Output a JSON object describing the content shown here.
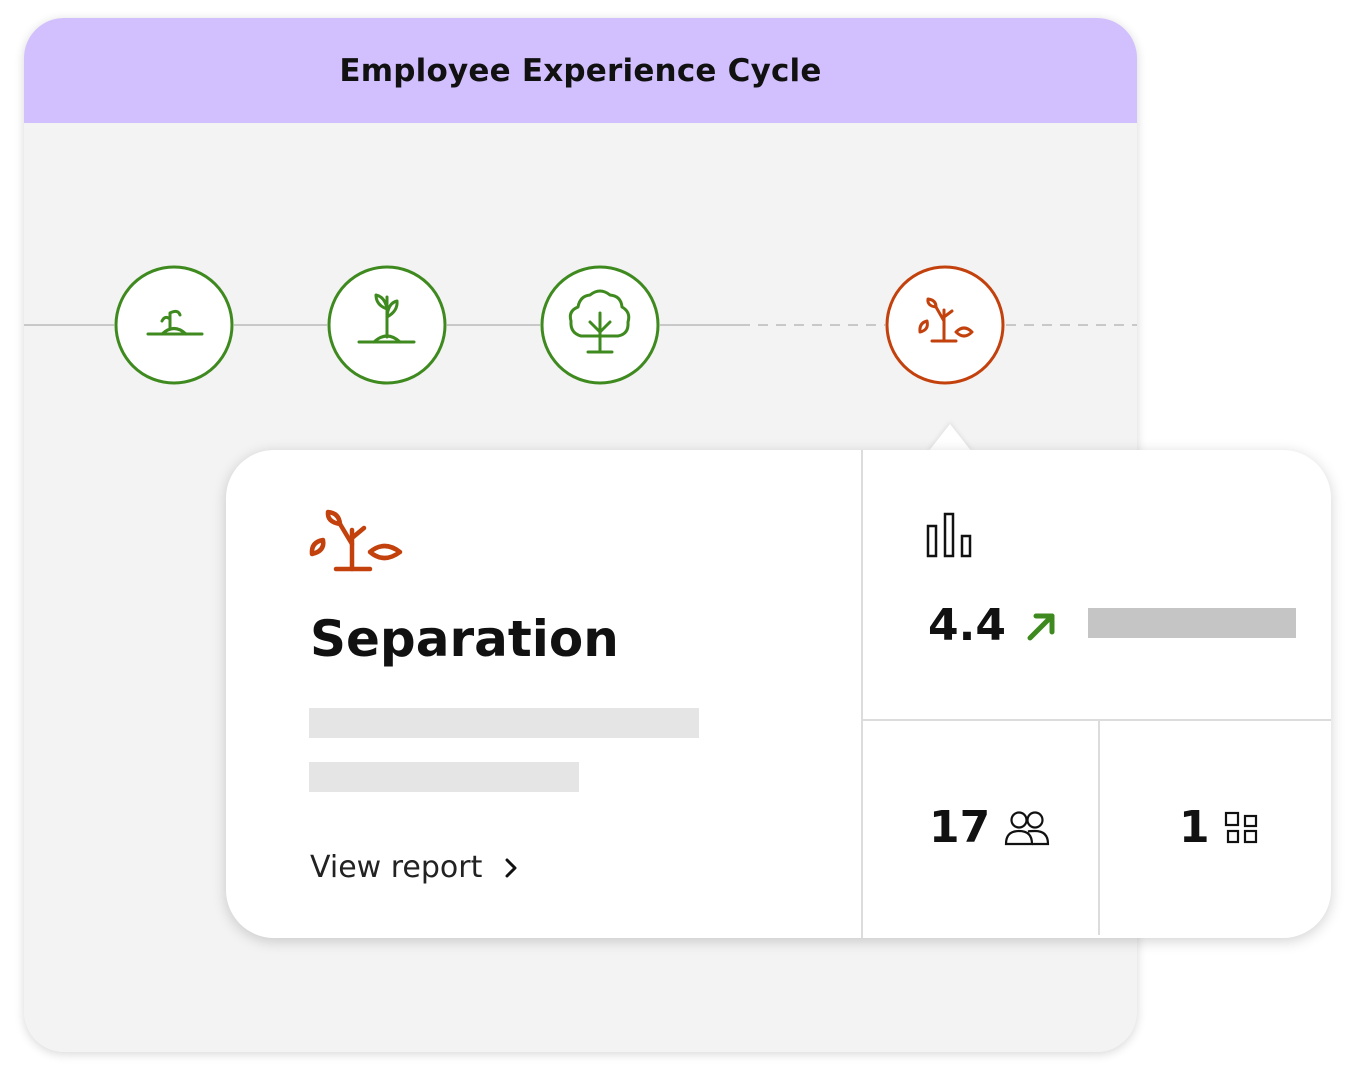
{
  "header": {
    "title": "Employee Experience Cycle"
  },
  "timeline": {
    "stages": [
      {
        "icon": "seedling-icon",
        "state": "complete"
      },
      {
        "icon": "sprout-icon",
        "state": "complete"
      },
      {
        "icon": "tree-icon",
        "state": "complete"
      },
      {
        "icon": "falling-leaves-icon",
        "state": "selected"
      }
    ]
  },
  "popup": {
    "stage_title": "Separation",
    "view_report_label": "View report",
    "score": "4.4",
    "score_trend": "up",
    "respondents": "17",
    "items": "1"
  },
  "colors": {
    "header_bg": "#d2bffe",
    "complete_green": "#3f8a1f",
    "selected_orange": "#c2410c",
    "card_bg": "#f3f3f3"
  }
}
